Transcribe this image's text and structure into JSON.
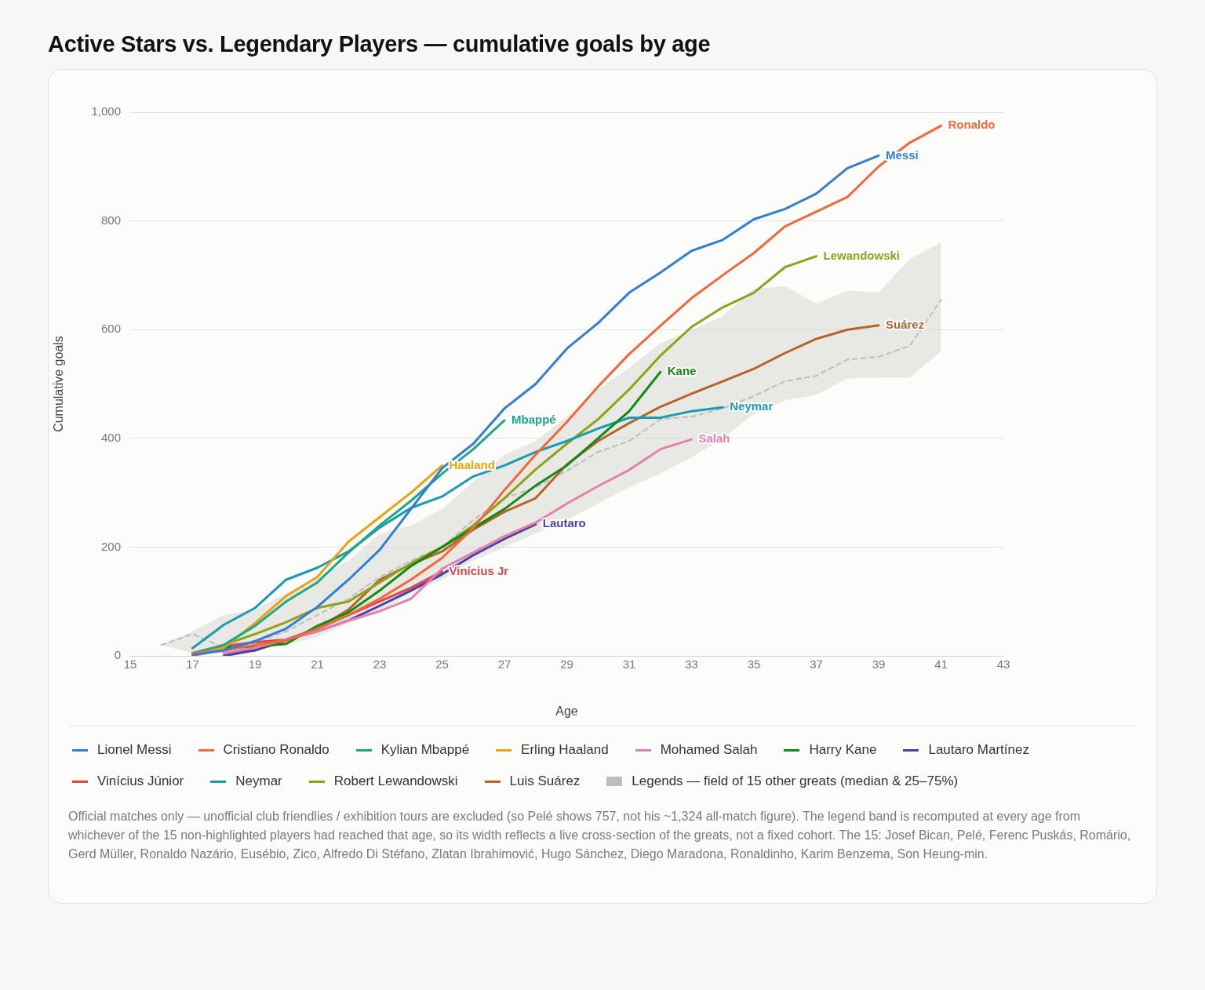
{
  "chart_data": {
    "type": "line",
    "title": "Active Stars vs. Legendary Players — cumulative goals by age",
    "xlabel": "Age",
    "ylabel": "Cumulative goals",
    "xlim": [
      15,
      43
    ],
    "xticks": [
      15,
      17,
      19,
      21,
      23,
      25,
      27,
      29,
      31,
      33,
      35,
      37,
      39,
      41,
      43
    ],
    "ylim": [
      0,
      1000
    ],
    "yticks": [
      0,
      200,
      400,
      600,
      800,
      {
        "value": 1000,
        "label": "1,000"
      }
    ],
    "grid": "y",
    "legend": "bottom",
    "marker": "none",
    "series": [
      {
        "name": "Lionel Messi",
        "color": "#2f7ed8",
        "x": [
          17,
          18,
          19,
          20,
          21,
          22,
          23,
          24,
          25,
          26,
          27,
          28,
          29,
          30,
          31,
          32,
          33,
          34,
          35,
          36,
          37,
          38,
          39
        ],
        "values": [
          1,
          10,
          27,
          50,
          90,
          140,
          195,
          270,
          345,
          390,
          455,
          500,
          565,
          612,
          668,
          705,
          745,
          765,
          803,
          822,
          850,
          897,
          920
        ]
      },
      {
        "name": "Cristiano Ronaldo",
        "color": "#ee6a3a",
        "x": [
          17,
          18,
          19,
          20,
          21,
          22,
          23,
          24,
          25,
          26,
          27,
          28,
          29,
          30,
          31,
          32,
          33,
          34,
          35,
          36,
          37,
          38,
          39,
          40,
          41
        ],
        "values": [
          5,
          10,
          20,
          28,
          50,
          75,
          105,
          140,
          180,
          235,
          305,
          370,
          430,
          495,
          555,
          607,
          658,
          700,
          741,
          790,
          817,
          844,
          900,
          944,
          975
        ]
      },
      {
        "name": "Kylian Mbappé",
        "color": "#1fa884",
        "x": [
          17,
          18,
          19,
          20,
          21,
          22,
          23,
          24,
          25,
          26,
          27
        ],
        "values": [
          5,
          20,
          55,
          100,
          135,
          190,
          240,
          285,
          335,
          380,
          433
        ]
      },
      {
        "name": "Erling Haaland",
        "color": "#e8a413",
        "x": [
          17,
          18,
          19,
          20,
          21,
          22,
          23,
          24,
          25
        ],
        "values": [
          3,
          15,
          60,
          110,
          145,
          210,
          255,
          300,
          350
        ]
      },
      {
        "name": "Mohamed Salah",
        "color": "#e57fac",
        "x": [
          18,
          19,
          20,
          21,
          22,
          23,
          24,
          25,
          26,
          27,
          28,
          29,
          30,
          31,
          32,
          33
        ],
        "values": [
          5,
          15,
          30,
          45,
          65,
          82,
          105,
          160,
          190,
          220,
          245,
          280,
          312,
          342,
          380,
          398
        ]
      },
      {
        "name": "Harry Kane",
        "color": "#138a13",
        "x": [
          17,
          18,
          19,
          20,
          21,
          22,
          23,
          24,
          25,
          26,
          27,
          28,
          29,
          30,
          31,
          32
        ],
        "values": [
          2,
          15,
          17,
          22,
          55,
          80,
          120,
          165,
          200,
          235,
          270,
          313,
          350,
          400,
          450,
          522
        ]
      },
      {
        "name": "Lautaro Martínez",
        "color": "#4b3fa8",
        "x": [
          18,
          19,
          20,
          21,
          22,
          23,
          24,
          25,
          26,
          27,
          28
        ],
        "values": [
          0,
          10,
          30,
          45,
          65,
          92,
          120,
          150,
          185,
          215,
          242
        ]
      },
      {
        "name": "Vinícius Júnior",
        "color": "#e0434a",
        "x": [
          17,
          18,
          19,
          20,
          21,
          22,
          23,
          24,
          25
        ],
        "values": [
          3,
          18,
          25,
          30,
          50,
          75,
          100,
          125,
          155
        ]
      },
      {
        "name": "Neymar",
        "color": "#1b9ab0",
        "x": [
          17,
          18,
          19,
          20,
          21,
          22,
          23,
          24,
          25,
          26,
          27,
          28,
          29,
          30,
          31,
          32,
          33,
          34
        ],
        "values": [
          14,
          57,
          88,
          140,
          162,
          192,
          236,
          272,
          293,
          330,
          350,
          375,
          395,
          418,
          438,
          438,
          450,
          457
        ]
      },
      {
        "name": "Robert Lewandowski",
        "color": "#8fa318",
        "x": [
          17,
          18,
          19,
          20,
          21,
          22,
          23,
          24,
          25,
          26,
          27,
          28,
          29,
          30,
          31,
          32,
          33,
          34,
          35,
          36,
          37
        ],
        "values": [
          2,
          20,
          40,
          62,
          88,
          100,
          135,
          170,
          200,
          240,
          290,
          343,
          390,
          435,
          490,
          552,
          605,
          641,
          668,
          715,
          735
        ]
      },
      {
        "name": "Luis Suárez",
        "color": "#b5652a",
        "x": [
          18,
          19,
          20,
          21,
          22,
          23,
          24,
          25,
          26,
          27,
          28,
          29,
          30,
          31,
          32,
          33,
          34,
          35,
          36,
          37,
          38,
          39
        ],
        "values": [
          5,
          10,
          28,
          50,
          85,
          140,
          168,
          192,
          232,
          265,
          290,
          352,
          395,
          428,
          458,
          482,
          505,
          528,
          557,
          583,
          600,
          608
        ]
      },
      {
        "name": "Legends — field of 15 other greats (median & 25–75%)",
        "color": "#bdbdbd",
        "line_style": "dashed",
        "x": [
          16,
          17,
          18,
          19,
          20,
          21,
          22,
          23,
          24,
          25,
          26,
          27,
          28,
          29,
          30,
          31,
          32,
          33,
          34,
          35,
          36,
          37,
          38,
          39,
          40,
          41
        ],
        "values": [
          20,
          40,
          15,
          25,
          45,
          75,
          105,
          145,
          175,
          200,
          250,
          290,
          310,
          340,
          375,
          395,
          435,
          440,
          455,
          478,
          505,
          515,
          545,
          550,
          570,
          655
        ],
        "lower": [
          20,
          5,
          5,
          10,
          20,
          35,
          60,
          80,
          115,
          140,
          175,
          200,
          225,
          250,
          280,
          310,
          335,
          365,
          400,
          445,
          470,
          480,
          510,
          512,
          512,
          560
        ],
        "upper": [
          20,
          45,
          75,
          85,
          115,
          145,
          175,
          225,
          240,
          270,
          320,
          370,
          395,
          440,
          490,
          530,
          575,
          600,
          625,
          675,
          680,
          648,
          672,
          668,
          730,
          760
        ]
      }
    ],
    "annotations": [
      {
        "text": "Messi",
        "x": 39,
        "y": 920
      },
      {
        "text": "Ronaldo",
        "x": 41,
        "y": 975
      },
      {
        "text": "Mbappé",
        "x": 27,
        "y": 433
      },
      {
        "text": "Haaland",
        "x": 25,
        "y": 350
      },
      {
        "text": "Salah",
        "x": 33,
        "y": 398
      },
      {
        "text": "Kane",
        "x": 32,
        "y": 522
      },
      {
        "text": "Lautaro",
        "x": 28,
        "y": 242
      },
      {
        "text": "Vinícius Jr",
        "x": 25,
        "y": 155
      },
      {
        "text": "Neymar",
        "x": 34,
        "y": 457
      },
      {
        "text": "Lewandowski",
        "x": 37,
        "y": 735
      },
      {
        "text": "Suárez",
        "x": 39,
        "y": 608
      },
      "Official matches only — unofficial club friendlies / exhibition tours are excluded (so Pelé shows 757, not his ~1,324 all-match figure). The legend band is recomputed at every age from whichever of the 15 non-highlighted players had reached that age, so its width reflects a live cross-section of the greats, not a fixed cohort. The 15: Josef Bican, Pelé, Ferenc Puskás, Romário, Gerd Müller, Ronaldo Nazário, Eusébio, Zico, Alfredo Di Stéfano, Zlatan Ibrahimović, Hugo Sánchez, Diego Maradona, Ronaldinho, Karim Benzema, Son Heung-min."
    ]
  }
}
